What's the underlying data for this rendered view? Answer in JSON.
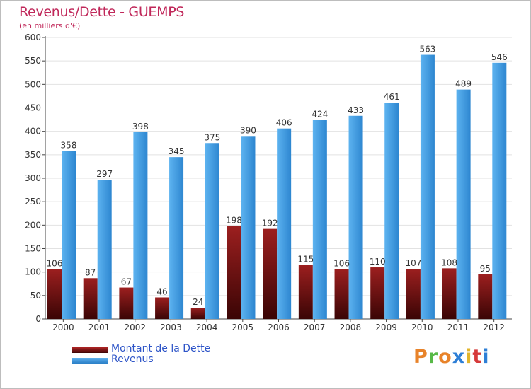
{
  "chart_data": {
    "type": "bar",
    "title": "Revenus/Dette - GUEMPS",
    "subtitle": "(en milliers d'€)",
    "categories": [
      "2000",
      "2001",
      "2002",
      "2003",
      "2004",
      "2005",
      "2006",
      "2007",
      "2008",
      "2009",
      "2010",
      "2011",
      "2012"
    ],
    "series": [
      {
        "name": "Montant de la Dette",
        "color": "#8b1a1a",
        "values": [
          106,
          87,
          67,
          46,
          24,
          198,
          192,
          115,
          106,
          110,
          107,
          108,
          95
        ]
      },
      {
        "name": "Revenus",
        "color": "#3f9be0",
        "values": [
          358,
          297,
          398,
          345,
          375,
          390,
          406,
          424,
          433,
          461,
          563,
          489,
          546
        ]
      }
    ],
    "ylim": [
      0,
      600
    ],
    "yticks": [
      0,
      50,
      100,
      150,
      200,
      250,
      300,
      350,
      400,
      450,
      500,
      550,
      600
    ],
    "grid": true,
    "legend_position": "bottom-left"
  },
  "logo_text": "Proxiti",
  "logo_colors": [
    "#e8832a",
    "#58b947",
    "#e8832a",
    "#2e7fd6",
    "#e2b52b",
    "#d63a3a",
    "#2e7fd6"
  ]
}
